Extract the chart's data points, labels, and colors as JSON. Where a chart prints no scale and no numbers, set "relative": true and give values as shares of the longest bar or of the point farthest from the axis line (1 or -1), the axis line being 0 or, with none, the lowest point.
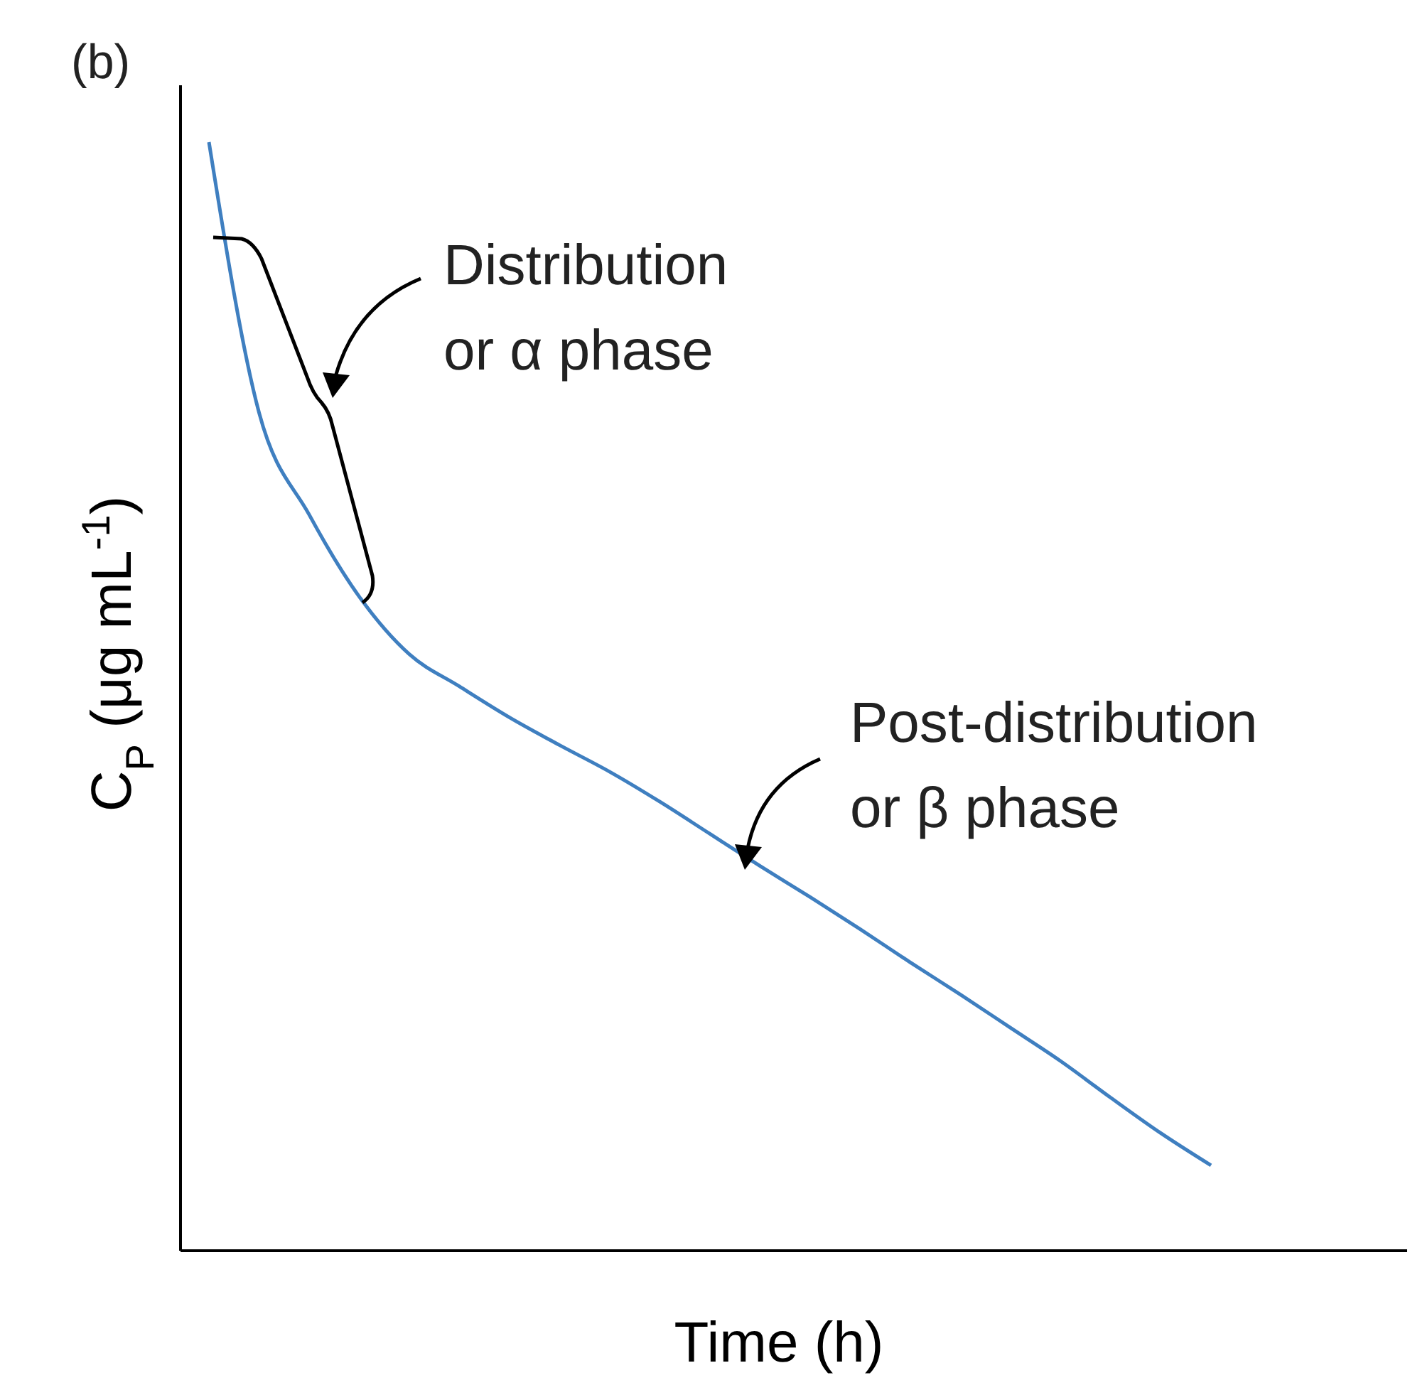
{
  "chart_data": {
    "type": "line",
    "relative": true,
    "marker": "none",
    "line_style": "solid",
    "xlabel": "Time (h)",
    "ylabel": "C$_{P}$ (μg mL$^{-1}$)",
    "annotations": [
      "(b)",
      "Distribution\nor α phase",
      "Post-distribution\nor β phase"
    ],
    "categories": [
      null,
      null,
      null,
      null,
      null,
      null,
      null,
      null,
      null,
      null,
      null,
      null,
      null,
      null,
      null,
      null,
      null,
      null,
      null,
      null,
      null
    ],
    "series": [
      {
        "color": "#3f7fc0",
        "values": [
          1,
          0.756,
          0.664,
          0.59,
          0.538,
          0.509,
          0.481,
          0.456,
          0.432,
          0.405,
          0.376,
          0.347,
          0.319,
          0.29,
          0.26,
          0.231,
          0.201,
          0.171,
          0.138,
          0.106,
          0.077
        ]
      }
    ]
  }
}
